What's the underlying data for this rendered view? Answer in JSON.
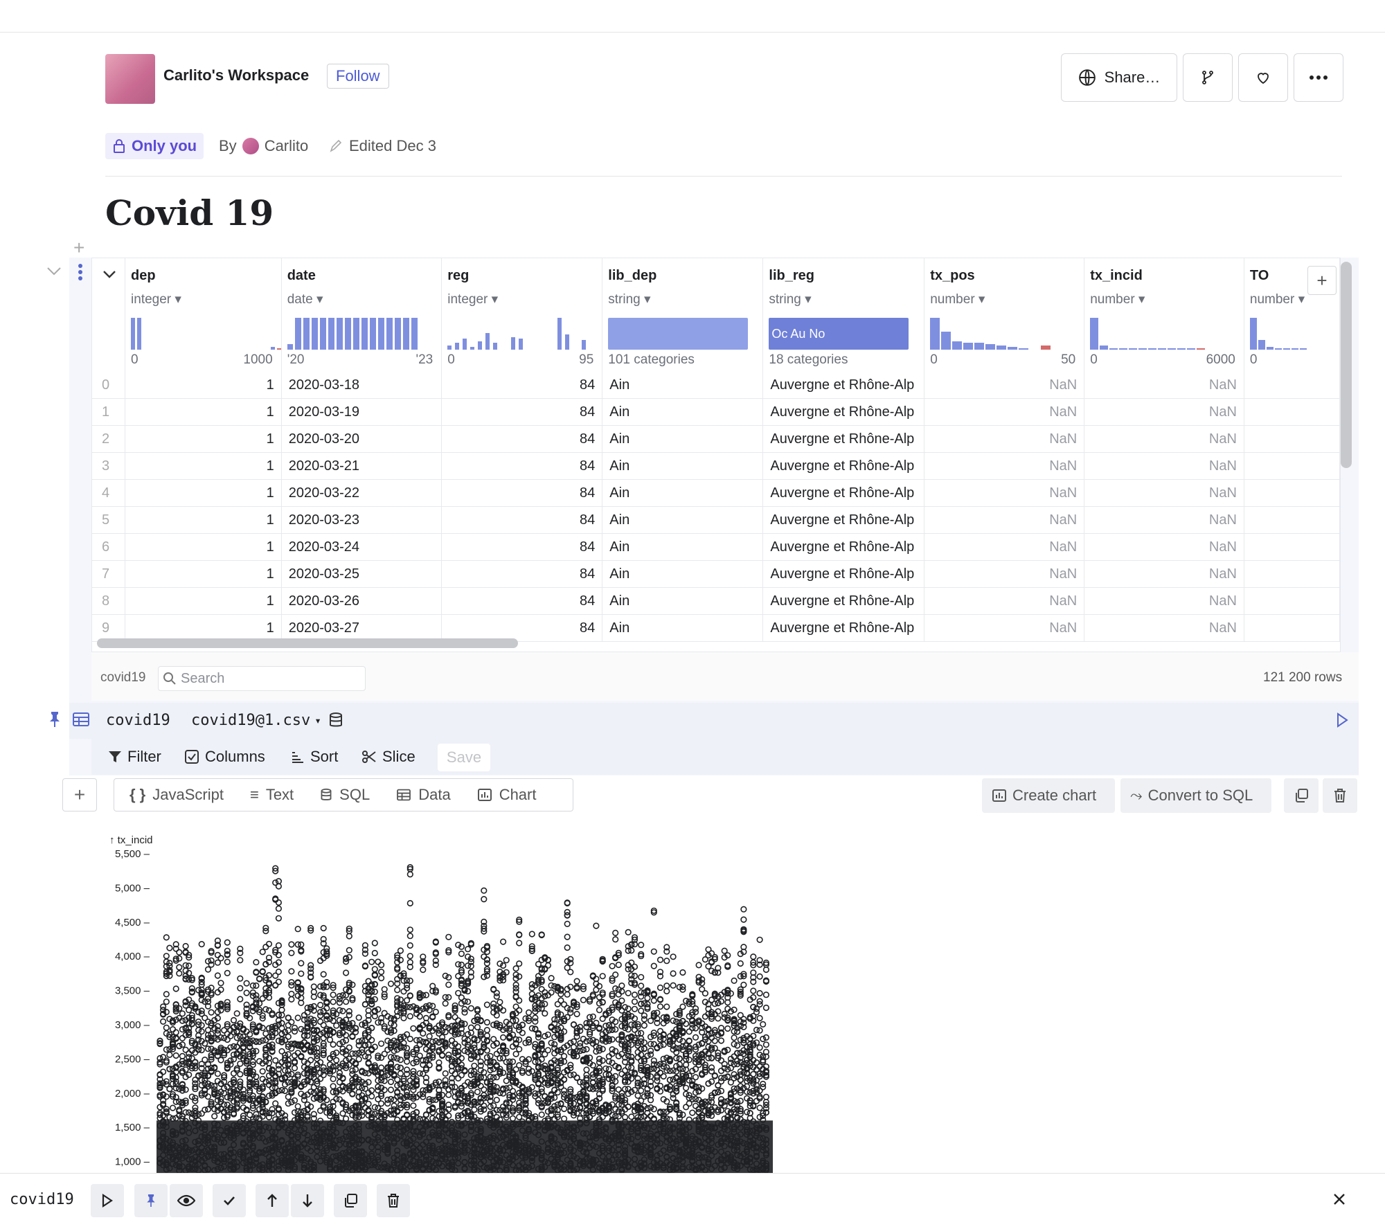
{
  "workspace": {
    "name": "Carlito's Workspace",
    "follow_label": "Follow"
  },
  "header_buttons": {
    "share_label": "Share…",
    "icons": [
      "globe-icon",
      "fork-icon",
      "heart-icon",
      "more-icon"
    ]
  },
  "meta": {
    "visibility": "Only you",
    "by_label": "By",
    "author": "Carlito",
    "edited": "Edited Dec 3"
  },
  "page_title": "Covid 19",
  "table": {
    "columns": [
      {
        "name": "dep",
        "type": "integer",
        "summary_left": "0",
        "summary_right": "1000"
      },
      {
        "name": "date",
        "type": "date",
        "summary_left": "'20",
        "summary_right": "'23"
      },
      {
        "name": "reg",
        "type": "integer",
        "summary_left": "0",
        "summary_right": "95"
      },
      {
        "name": "lib_dep",
        "type": "string",
        "summary_left": "101 categories",
        "summary_right": ""
      },
      {
        "name": "lib_reg",
        "type": "string",
        "summary_left": "18 categories",
        "summary_right": ""
      },
      {
        "name": "tx_pos",
        "type": "number",
        "summary_left": "0",
        "summary_right": "50"
      },
      {
        "name": "tx_incid",
        "type": "number",
        "summary_left": "0",
        "summary_right": "6000"
      },
      {
        "name": "TO",
        "type": "number",
        "summary_left": "0",
        "summary_right": ""
      }
    ],
    "lib_reg_hist_text": "Oc Au No",
    "rows": [
      {
        "i": "0",
        "dep": "1",
        "date": "2020-03-18",
        "reg": "84",
        "lib_dep": "Ain",
        "lib_reg": "Auvergne et Rhône-Alp",
        "tx_pos": "NaN",
        "tx_incid": "NaN"
      },
      {
        "i": "1",
        "dep": "1",
        "date": "2020-03-19",
        "reg": "84",
        "lib_dep": "Ain",
        "lib_reg": "Auvergne et Rhône-Alp",
        "tx_pos": "NaN",
        "tx_incid": "NaN"
      },
      {
        "i": "2",
        "dep": "1",
        "date": "2020-03-20",
        "reg": "84",
        "lib_dep": "Ain",
        "lib_reg": "Auvergne et Rhône-Alp",
        "tx_pos": "NaN",
        "tx_incid": "NaN"
      },
      {
        "i": "3",
        "dep": "1",
        "date": "2020-03-21",
        "reg": "84",
        "lib_dep": "Ain",
        "lib_reg": "Auvergne et Rhône-Alp",
        "tx_pos": "NaN",
        "tx_incid": "NaN"
      },
      {
        "i": "4",
        "dep": "1",
        "date": "2020-03-22",
        "reg": "84",
        "lib_dep": "Ain",
        "lib_reg": "Auvergne et Rhône-Alp",
        "tx_pos": "NaN",
        "tx_incid": "NaN"
      },
      {
        "i": "5",
        "dep": "1",
        "date": "2020-03-23",
        "reg": "84",
        "lib_dep": "Ain",
        "lib_reg": "Auvergne et Rhône-Alp",
        "tx_pos": "NaN",
        "tx_incid": "NaN"
      },
      {
        "i": "6",
        "dep": "1",
        "date": "2020-03-24",
        "reg": "84",
        "lib_dep": "Ain",
        "lib_reg": "Auvergne et Rhône-Alp",
        "tx_pos": "NaN",
        "tx_incid": "NaN"
      },
      {
        "i": "7",
        "dep": "1",
        "date": "2020-03-25",
        "reg": "84",
        "lib_dep": "Ain",
        "lib_reg": "Auvergne et Rhône-Alp",
        "tx_pos": "NaN",
        "tx_incid": "NaN"
      },
      {
        "i": "8",
        "dep": "1",
        "date": "2020-03-26",
        "reg": "84",
        "lib_dep": "Ain",
        "lib_reg": "Auvergne et Rhône-Alp",
        "tx_pos": "NaN",
        "tx_incid": "NaN"
      },
      {
        "i": "9",
        "dep": "1",
        "date": "2020-03-27",
        "reg": "84",
        "lib_dep": "Ain",
        "lib_reg": "Auvergne et Rhône-Alp",
        "tx_pos": "NaN",
        "tx_incid": "NaN"
      }
    ],
    "dataset_name": "covid19",
    "search_placeholder": "Search",
    "row_count": "121 200 rows"
  },
  "cell": {
    "name": "covid19",
    "source": "covid19@1.csv",
    "actions": {
      "filter": "Filter",
      "columns": "Columns",
      "sort": "Sort",
      "slice": "Slice",
      "save": "Save"
    }
  },
  "insert_bar": {
    "javascript": "JavaScript",
    "text": "Text",
    "sql": "SQL",
    "data": "Data",
    "chart": "Chart"
  },
  "cell_buttons": {
    "create_chart": "Create chart",
    "convert_sql": "Convert to SQL"
  },
  "chart_data": {
    "type": "scatter",
    "ylabel": "↑ tx_incid",
    "y_ticks": [
      "5,500",
      "5,000",
      "4,500",
      "4,000",
      "3,500",
      "3,000",
      "2,500",
      "2,000",
      "1,500",
      "1,000"
    ],
    "ylim": [
      1000,
      5500
    ],
    "marker": "hollow circle",
    "color": "#1f2023"
  },
  "bottombar": {
    "cell_name": "covid19"
  },
  "colors": {
    "accent": "#4c5ad4",
    "hist": "#7f8fe0",
    "badge_bg": "#efeefc"
  }
}
